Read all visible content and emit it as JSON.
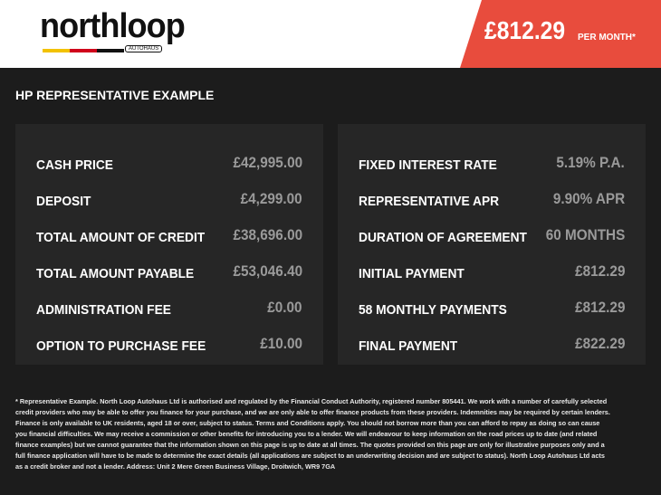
{
  "brand": {
    "name": "northloop",
    "sub": "AUTOHAUS",
    "stripe_colors": [
      "#f2c200",
      "#d0021b",
      "#111111"
    ]
  },
  "header": {
    "price": "£812.29",
    "per_month": "PER MONTH*",
    "accent": "#e84c3d"
  },
  "section_title": "HP REPRESENTATIVE EXAMPLE",
  "left": [
    {
      "label": "CASH PRICE",
      "value": "£42,995.00"
    },
    {
      "label": "DEPOSIT",
      "value": "£4,299.00"
    },
    {
      "label": "TOTAL AMOUNT OF CREDIT",
      "value": "£38,696.00"
    },
    {
      "label": "TOTAL AMOUNT PAYABLE",
      "value": "£53,046.40"
    },
    {
      "label": "ADMINISTRATION FEE",
      "value": "£0.00"
    },
    {
      "label": "OPTION TO PURCHASE FEE",
      "value": "£10.00"
    }
  ],
  "right": [
    {
      "label": "FIXED INTEREST RATE",
      "value": "5.19% P.A."
    },
    {
      "label": "REPRESENTATIVE APR",
      "value": "9.90% APR"
    },
    {
      "label": "DURATION OF AGREEMENT",
      "value": "60 MONTHS"
    },
    {
      "label": "INITIAL PAYMENT",
      "value": "£812.29"
    },
    {
      "label": "58 MONTHLY PAYMENTS",
      "value": "£812.29"
    },
    {
      "label": "FINAL PAYMENT",
      "value": "£822.29"
    }
  ],
  "disclaimer": "* Representative Example. North Loop Autohaus Ltd is authorised and regulated by the Financial Conduct Authority, registered number 805441. We work with a number of carefully selected credit providers who may be able to offer you finance for your purchase, and we are only able to offer finance products from these providers. Indemnities may be required by certain lenders. Finance is only available to UK residents, aged 18 or over, subject to status. Terms and Conditions apply. You should not borrow more than you can afford to repay as doing so can cause you financial difficulties. We may receive a commission or other benefits for introducing you to a lender. We will endeavour to keep information on the road prices up to date (and related finance examples) but we cannot guarantee that the information shown on this page is up to date at all times. The quotes provided on this page are only for illustrative purposes only and a full finance application will have to be made to determine the exact details (all applications are subject to an underwriting decision and are subject to status). North Loop Autohaus Ltd acts as a credit broker and not a lender. Address: Unit 2 Mere Green Business Village, Droitwich, WR9 7GA"
}
